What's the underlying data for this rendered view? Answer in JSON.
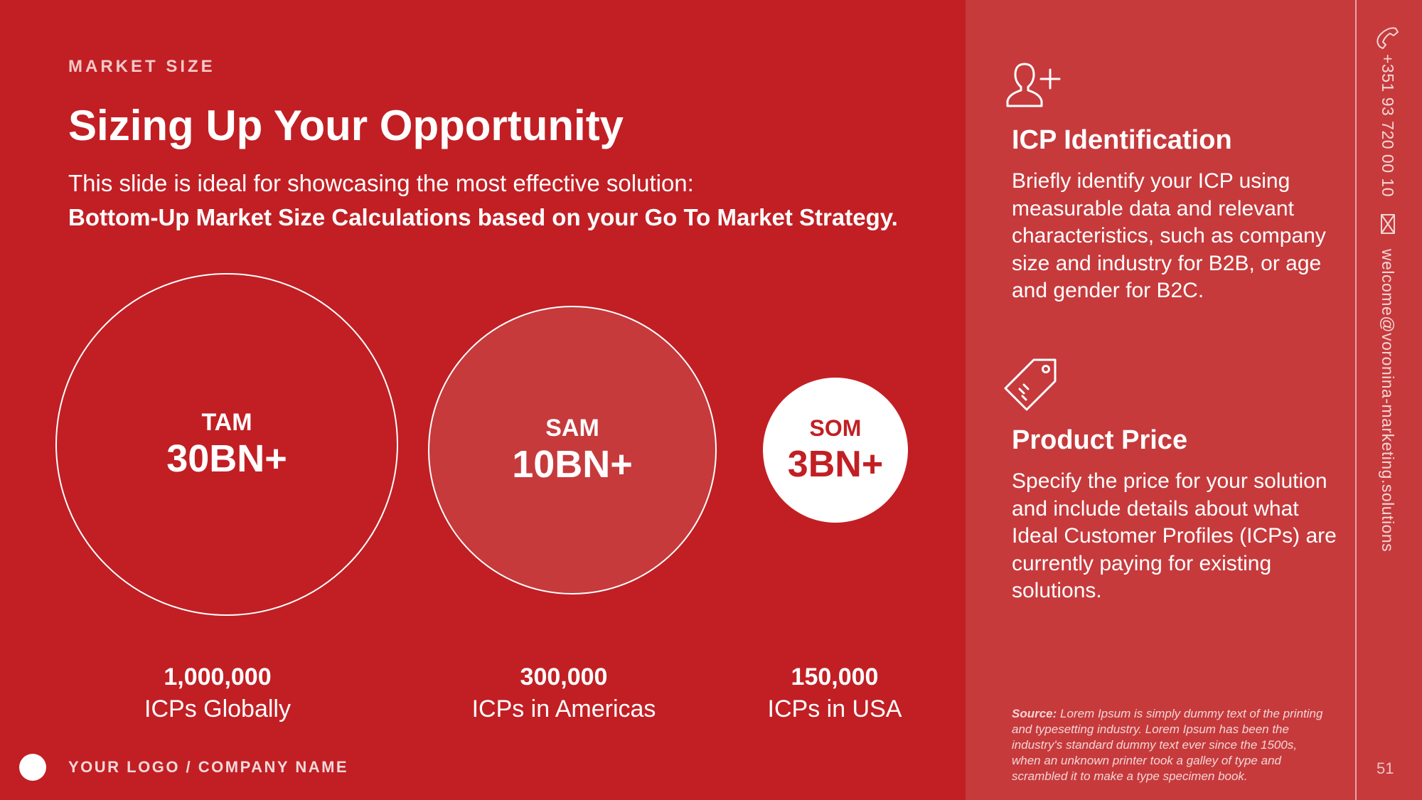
{
  "header": {
    "eyebrow": "MARKET SIZE",
    "title": "Sizing Up Your Opportunity",
    "subtitle_line1": "This slide is ideal for showcasing the most effective solution:",
    "subtitle_line2": "Bottom-Up Market Size Calculations based on your Go To Market Strategy."
  },
  "circles": {
    "tam": {
      "label": "TAM",
      "value": "30BN+"
    },
    "sam": {
      "label": "SAM",
      "value": "10BN+"
    },
    "som": {
      "label": "SOM",
      "value": "3BN+"
    }
  },
  "stats": [
    {
      "number": "1,000,000",
      "label": "ICPs Globally"
    },
    {
      "number": "300,000",
      "label": "ICPs in Americas"
    },
    {
      "number": "150,000",
      "label": "ICPs in USA"
    }
  ],
  "footer": {
    "logo_text": "YOUR LOGO / COMPANY NAME"
  },
  "sidebar": {
    "icp": {
      "icon": "add-user-icon",
      "title": "ICP Identification",
      "body": "Briefly identify your ICP using measurable data and relevant characteristics, such as company size and industry for B2B, or age and gender for B2C."
    },
    "price": {
      "icon": "price-tag-icon",
      "title": "Product Price",
      "body": "Specify the price for your solution and include details about what Ideal Customer Profiles (ICPs) are currently paying for existing solutions."
    },
    "source_label": "Source:",
    "source_text": "Lorem Ipsum is simply dummy text of the printing and typesetting industry. Lorem Ipsum has been the industry's standard dummy text ever since the 1500s, when an unknown printer took a galley of type and scrambled it to make a type specimen book."
  },
  "contact": {
    "phone_icon": "phone-icon",
    "phone": "+351 93 720 00 10",
    "mail_icon": "mail-icon",
    "email": "welcome@voronina-marketing.solutions"
  },
  "page_number": "51",
  "colors": {
    "primary_red": "#c11f24",
    "panel_red": "#c63a3c",
    "white": "#ffffff"
  }
}
